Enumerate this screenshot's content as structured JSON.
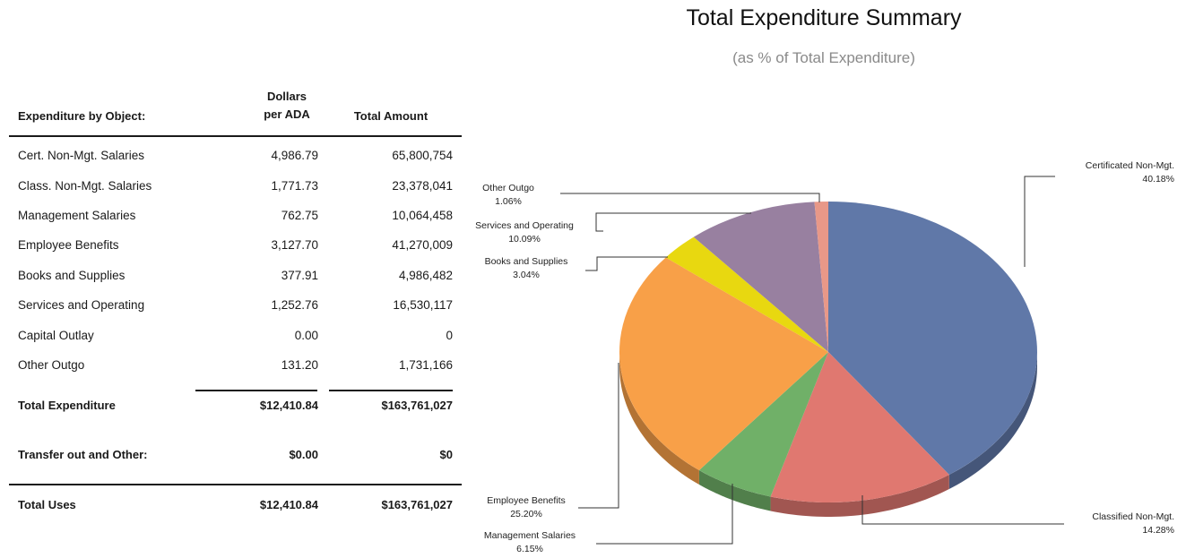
{
  "table": {
    "header_object": "Expenditure by Object:",
    "header_ada_line1": "Dollars",
    "header_ada_line2": "per ADA",
    "header_total": "Total Amount",
    "rows": [
      {
        "label": "Cert. Non-Mgt. Salaries",
        "ada": "4,986.79",
        "amount": "65,800,754"
      },
      {
        "label": "Class. Non-Mgt. Salaries",
        "ada": "1,771.73",
        "amount": "23,378,041"
      },
      {
        "label": "Management Salaries",
        "ada": "762.75",
        "amount": "10,064,458"
      },
      {
        "label": "Employee Benefits",
        "ada": "3,127.70",
        "amount": "41,270,009"
      },
      {
        "label": "Books and Supplies",
        "ada": "377.91",
        "amount": "4,986,482"
      },
      {
        "label": "Services and Operating",
        "ada": "1,252.76",
        "amount": "16,530,117"
      },
      {
        "label": "Capital Outlay",
        "ada": "0.00",
        "amount": "0"
      },
      {
        "label": "Other Outgo",
        "ada": "131.20",
        "amount": "1,731,166"
      }
    ],
    "total_expenditure": {
      "label": "Total Expenditure",
      "ada": "$12,410.84",
      "amount": "$163,761,027"
    },
    "transfer_out": {
      "label": "Transfer out and Other:",
      "ada": "$0.00",
      "amount": "$0"
    },
    "total_uses": {
      "label": "Total Uses",
      "ada": "$12,410.84",
      "amount": "$163,761,027"
    }
  },
  "chart_data": {
    "type": "pie",
    "title": "Total Expenditure Summary",
    "subtitle": "(as % of Total Expenditure)",
    "slices": [
      {
        "label": "Certificated Non-Mgt.",
        "value": 40.18,
        "pct_label": "40.18%",
        "color": "#6078a8"
      },
      {
        "label": "Classified Non-Mgt.",
        "value": 14.28,
        "pct_label": "14.28%",
        "color": "#e07870"
      },
      {
        "label": "Management Salaries",
        "value": 6.15,
        "pct_label": "6.15%",
        "color": "#70b068"
      },
      {
        "label": "Employee Benefits",
        "value": 25.2,
        "pct_label": "25.20%",
        "color": "#f8a048"
      },
      {
        "label": "Books and Supplies",
        "value": 3.04,
        "pct_label": "3.04%",
        "color": "#e8d810"
      },
      {
        "label": "Services and Operating",
        "value": 10.09,
        "pct_label": "10.09%",
        "color": "#9880a0"
      },
      {
        "label": "Other Outgo",
        "value": 1.06,
        "pct_label": "1.06%",
        "color": "#e89888"
      }
    ]
  }
}
